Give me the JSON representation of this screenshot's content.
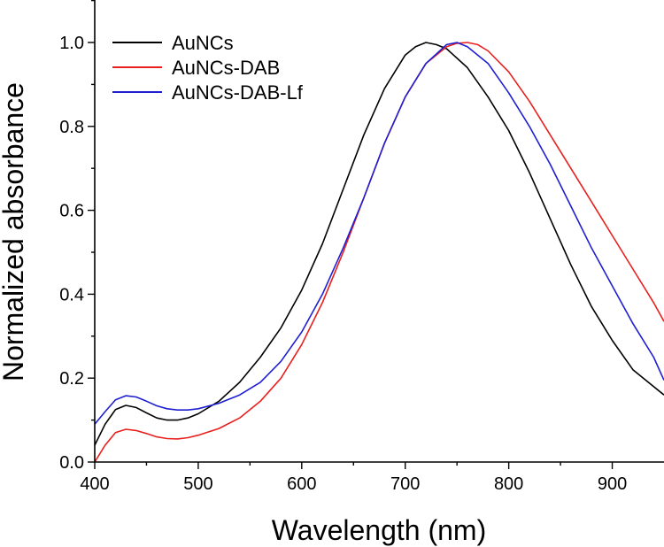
{
  "chart_data": {
    "type": "line",
    "title": "",
    "xlabel": "Wavelength (nm)",
    "ylabel": "Normalized absorbance",
    "xlim": [
      400,
      950
    ],
    "ylim": [
      0.0,
      1.1
    ],
    "xticks": [
      400,
      500,
      600,
      700,
      800,
      900
    ],
    "yticks": [
      0.0,
      0.2,
      0.4,
      0.6,
      0.8,
      1.0
    ],
    "xtick_labels": [
      "400",
      "500",
      "600",
      "700",
      "800",
      "900"
    ],
    "ytick_labels": [
      "0.0",
      "0.2",
      "0.4",
      "0.6",
      "0.8",
      "1.0"
    ],
    "grid": false,
    "legend_position": "top-left",
    "series": [
      {
        "name": "AuNCs",
        "color": "#000000",
        "x": [
          400,
          410,
          420,
          430,
          440,
          450,
          460,
          470,
          480,
          490,
          500,
          520,
          540,
          560,
          580,
          600,
          620,
          640,
          660,
          680,
          700,
          710,
          720,
          730,
          740,
          760,
          780,
          800,
          820,
          840,
          860,
          880,
          900,
          920,
          940,
          950
        ],
        "y": [
          0.04,
          0.09,
          0.125,
          0.135,
          0.13,
          0.117,
          0.105,
          0.1,
          0.1,
          0.105,
          0.115,
          0.145,
          0.19,
          0.25,
          0.32,
          0.41,
          0.52,
          0.65,
          0.78,
          0.89,
          0.97,
          0.99,
          1.0,
          0.995,
          0.985,
          0.94,
          0.87,
          0.79,
          0.69,
          0.58,
          0.47,
          0.37,
          0.29,
          0.22,
          0.18,
          0.16
        ]
      },
      {
        "name": "AuNCs-DAB",
        "color": "#e8201e",
        "x": [
          400,
          410,
          420,
          430,
          440,
          450,
          460,
          470,
          480,
          490,
          500,
          520,
          540,
          560,
          580,
          600,
          620,
          640,
          660,
          680,
          700,
          720,
          740,
          750,
          760,
          770,
          780,
          800,
          820,
          840,
          860,
          880,
          900,
          920,
          940,
          950
        ],
        "y": [
          0.0,
          0.04,
          0.07,
          0.078,
          0.075,
          0.068,
          0.06,
          0.056,
          0.055,
          0.058,
          0.064,
          0.08,
          0.105,
          0.145,
          0.2,
          0.28,
          0.38,
          0.5,
          0.63,
          0.76,
          0.87,
          0.95,
          0.99,
          0.998,
          1.0,
          0.995,
          0.98,
          0.93,
          0.86,
          0.78,
          0.7,
          0.62,
          0.54,
          0.46,
          0.38,
          0.335
        ]
      },
      {
        "name": "AuNCs-DAB-Lf",
        "color": "#1f1fd2",
        "x": [
          400,
          410,
          420,
          430,
          440,
          450,
          460,
          470,
          480,
          490,
          500,
          520,
          540,
          560,
          580,
          600,
          620,
          640,
          660,
          680,
          700,
          720,
          740,
          750,
          760,
          780,
          800,
          820,
          840,
          860,
          880,
          900,
          920,
          940,
          950
        ],
        "y": [
          0.09,
          0.12,
          0.148,
          0.158,
          0.155,
          0.145,
          0.134,
          0.127,
          0.124,
          0.124,
          0.127,
          0.14,
          0.16,
          0.19,
          0.24,
          0.31,
          0.4,
          0.51,
          0.63,
          0.76,
          0.87,
          0.95,
          0.995,
          1.0,
          0.99,
          0.95,
          0.88,
          0.8,
          0.71,
          0.61,
          0.51,
          0.42,
          0.33,
          0.25,
          0.195
        ]
      }
    ]
  }
}
